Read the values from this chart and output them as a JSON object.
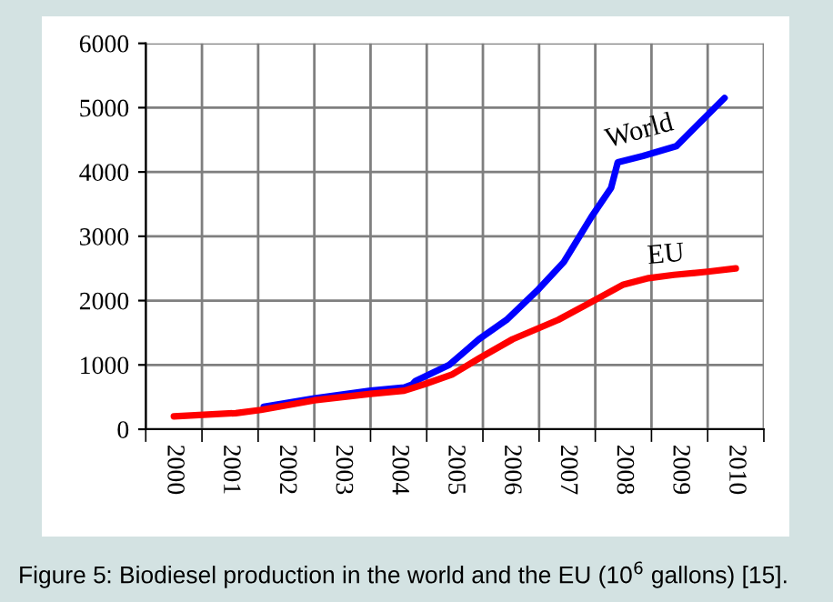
{
  "chart_data": {
    "type": "line",
    "annotations": [
      "Figure 5: Biodiesel production in the world and the EU (10$^{6}$ gallons) [15]."
    ],
    "series": [
      {
        "name": "World",
        "color": "#0000ff",
        "x": [
          2001.6,
          2002.5,
          2003.5,
          2004.1,
          2004.25,
          2004.3,
          2004.9,
          2005.43,
          2005.92,
          2006.46,
          2006.94,
          2007.43,
          2007.78,
          2007.9,
          2008.35,
          2008.94,
          2009.8
        ],
        "values": [
          350,
          480,
          600,
          650,
          700,
          750,
          1000,
          1400,
          1700,
          2150,
          2600,
          3300,
          3750,
          4150,
          4250,
          4400,
          5150
        ]
      },
      {
        "name": "EU",
        "color": "#ff0000",
        "x": [
          2000.0,
          2001.1,
          2001.55,
          2002.5,
          2003.5,
          2004.1,
          2004.46,
          2004.95,
          2005.43,
          2006.03,
          2006.84,
          2007.37,
          2008.0,
          2008.45,
          2008.9,
          2009.5,
          2010.0
        ],
        "values": [
          200,
          250,
          300,
          450,
          550,
          600,
          700,
          850,
          1100,
          1400,
          1700,
          1950,
          2250,
          2350,
          2400,
          2450,
          2500
        ]
      }
    ],
    "xlim": [
      1999.5,
      2010.5
    ],
    "xticks": [
      {
        "value": 1999.5,
        "label": null
      },
      {
        "value": 2000,
        "label": "2000"
      },
      {
        "value": 2000.5,
        "label": null
      },
      {
        "value": 2001,
        "label": "2001"
      },
      {
        "value": 2001.5,
        "label": null
      },
      {
        "value": 2002,
        "label": "2002"
      },
      {
        "value": 2002.5,
        "label": null
      },
      {
        "value": 2003,
        "label": "2003"
      },
      {
        "value": 2003.5,
        "label": null
      },
      {
        "value": 2004,
        "label": "2004"
      },
      {
        "value": 2004.5,
        "label": null
      },
      {
        "value": 2005,
        "label": "2005"
      },
      {
        "value": 2005.5,
        "label": null
      },
      {
        "value": 2006,
        "label": "2006"
      },
      {
        "value": 2006.5,
        "label": null
      },
      {
        "value": 2007,
        "label": "2007"
      },
      {
        "value": 2007.5,
        "label": null
      },
      {
        "value": 2008,
        "label": "2008"
      },
      {
        "value": 2008.5,
        "label": null
      },
      {
        "value": 2009,
        "label": "2009"
      },
      {
        "value": 2009.5,
        "label": null
      },
      {
        "value": 2010,
        "label": "2010"
      },
      {
        "value": 2010.5,
        "label": null
      }
    ],
    "ylim": [
      0,
      6000
    ],
    "yticks": [
      0,
      1000,
      2000,
      3000,
      4000,
      5000,
      6000
    ],
    "grid": true,
    "legend": false,
    "marker": "none",
    "line_style": "solid"
  }
}
